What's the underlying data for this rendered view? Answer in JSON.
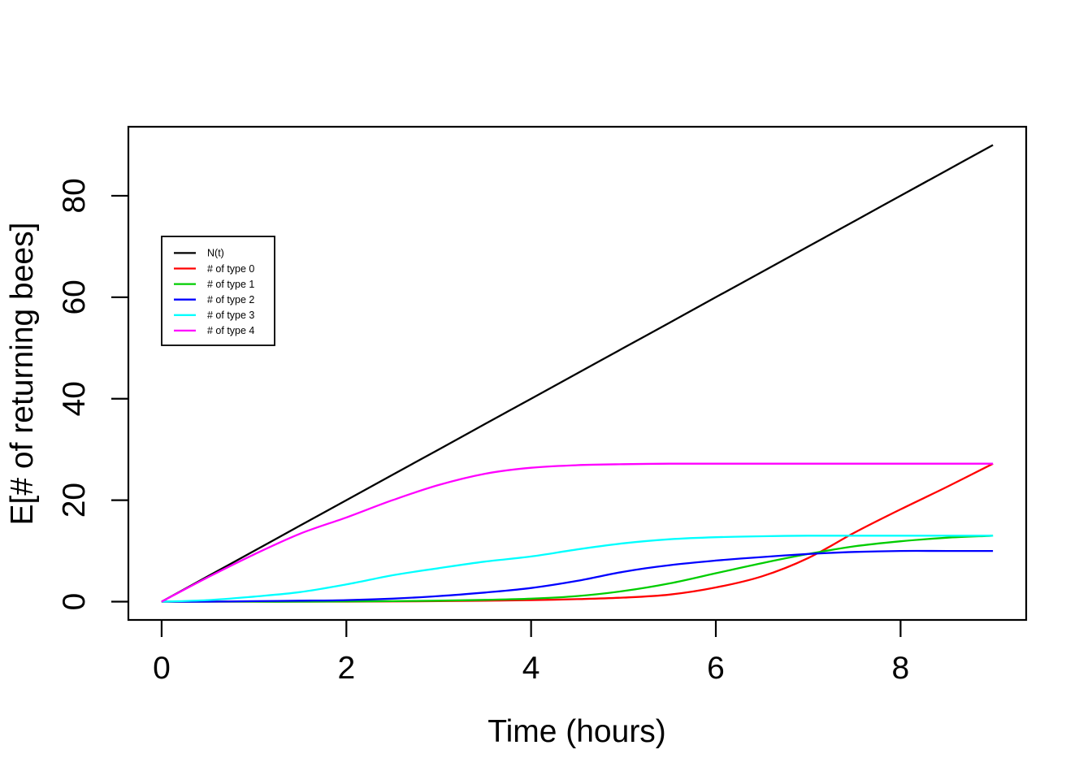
{
  "figure": {
    "background": "#FFFFFF",
    "plot_border_color": "#000000"
  },
  "chart_data": {
    "type": "line",
    "title": "",
    "xlabel": "Time (hours)",
    "ylabel": "E[# of returning bees]",
    "xlim": [
      0,
      9
    ],
    "ylim": [
      0,
      90
    ],
    "xticks": [
      0,
      2,
      4,
      6,
      8
    ],
    "yticks": [
      0,
      20,
      40,
      60,
      80
    ],
    "grid": false,
    "legend_position": "upper-left-inside",
    "x": [
      0,
      0.5,
      1,
      1.5,
      2,
      2.5,
      3,
      3.5,
      4,
      4.5,
      5,
      5.5,
      6,
      6.5,
      7,
      7.5,
      8,
      8.5,
      9
    ],
    "series": [
      {
        "name": "N(t)",
        "color": "#000000",
        "values": [
          0,
          5,
          10,
          15,
          20,
          25,
          30,
          35,
          40,
          45,
          50,
          55,
          60,
          65,
          70,
          75,
          80,
          85,
          90
        ]
      },
      {
        "name": "# of type 0",
        "color": "#FF0000",
        "values": [
          0,
          0,
          0,
          0,
          0,
          0.05,
          0.1,
          0.2,
          0.3,
          0.5,
          0.8,
          1.4,
          2.8,
          5.0,
          8.6,
          13.6,
          18.2,
          22.6,
          27.2
        ]
      },
      {
        "name": "# of type 1",
        "color": "#00CD00",
        "values": [
          0,
          0,
          0,
          0,
          0.05,
          0.1,
          0.2,
          0.35,
          0.6,
          1.1,
          2.1,
          3.6,
          5.6,
          7.6,
          9.4,
          10.9,
          11.9,
          12.6,
          13.0
        ]
      },
      {
        "name": "# of type 2",
        "color": "#0000FF",
        "values": [
          0,
          0,
          0.1,
          0.2,
          0.3,
          0.6,
          1.1,
          1.8,
          2.7,
          4.1,
          5.9,
          7.2,
          8.1,
          8.8,
          9.4,
          9.8,
          10.0,
          10.0,
          10.0
        ]
      },
      {
        "name": "# of type 3",
        "color": "#00FFFF",
        "values": [
          0,
          0.3,
          1.0,
          1.9,
          3.4,
          5.2,
          6.6,
          7.9,
          8.9,
          10.3,
          11.5,
          12.3,
          12.7,
          12.9,
          13.0,
          13.0,
          13.0,
          13.0,
          13.0
        ]
      },
      {
        "name": "# of type 4",
        "color": "#FF00FF",
        "values": [
          0,
          4.8,
          9.3,
          13.4,
          16.6,
          20.0,
          23.0,
          25.2,
          26.4,
          26.9,
          27.1,
          27.2,
          27.2,
          27.2,
          27.2,
          27.2,
          27.2,
          27.2,
          27.2
        ]
      }
    ]
  }
}
